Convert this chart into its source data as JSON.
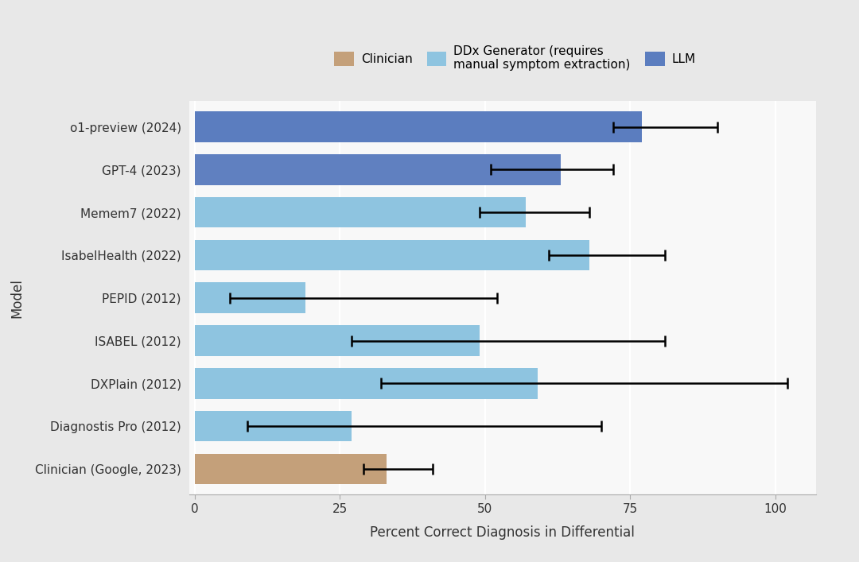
{
  "models": [
    "o1-preview (2024)",
    "GPT-4 (2023)",
    "Memem7 (2022)",
    "IsabelHealth (2022)",
    "PEPID (2012)",
    "ISABEL (2012)",
    "DXPlain (2012)",
    "Diagnostis Pro (2012)",
    "Clinician (Google, 2023)"
  ],
  "values": [
    77,
    63,
    57,
    68,
    19,
    49,
    59,
    27,
    33
  ],
  "err_low": [
    5,
    12,
    8,
    7,
    13,
    22,
    27,
    18,
    4
  ],
  "err_high": [
    13,
    9,
    11,
    13,
    33,
    32,
    43,
    43,
    8
  ],
  "colors": [
    "#5b7dbf",
    "#6080c0",
    "#8ec4e0",
    "#8ec4e0",
    "#8ec4e0",
    "#8ec4e0",
    "#8ec4e0",
    "#8ec4e0",
    "#c4a07a"
  ],
  "bar_height": 0.72,
  "xlabel": "Percent Correct Diagnosis in Differential",
  "ylabel": "Model",
  "xlim": [
    -1,
    107
  ],
  "xticks": [
    0,
    25,
    50,
    75,
    100
  ],
  "outer_bg": "#e8e8e8",
  "plot_bg_color": "#f8f8f8",
  "grid_color": "#ffffff",
  "legend": {
    "clinician_color": "#c4a07a",
    "ddx_color": "#8ec4e0",
    "llm_color": "#5b7dbf",
    "clinician_label": "Clinician",
    "ddx_label": "DDx Generator (requires\nmanual symptom extraction)",
    "llm_label": "LLM"
  },
  "label_fontsize": 12,
  "tick_fontsize": 11,
  "legend_fontsize": 11
}
